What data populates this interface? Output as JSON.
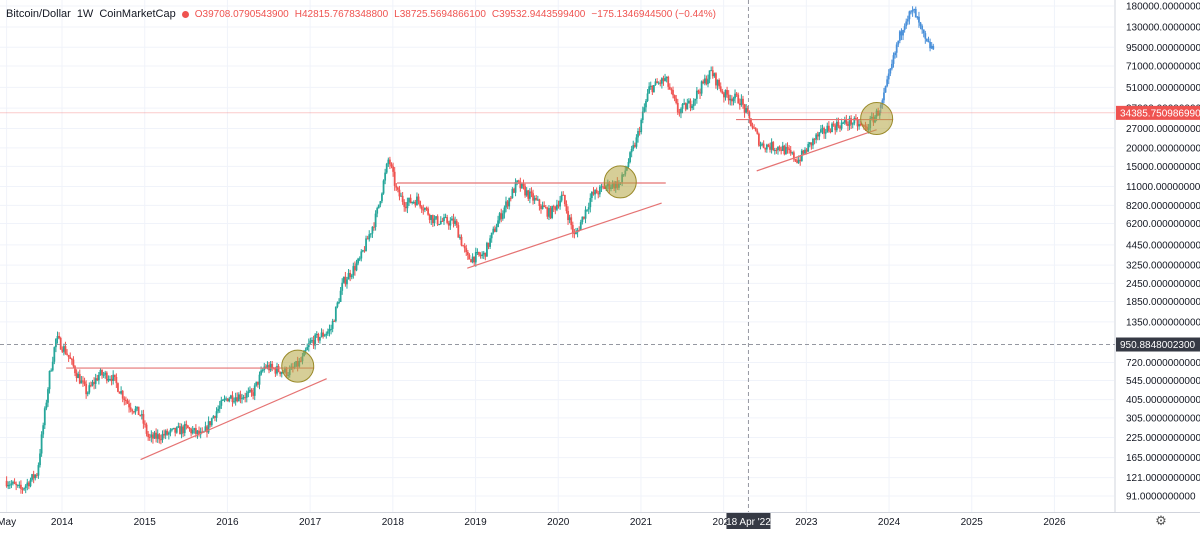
{
  "header": {
    "symbol": "Bitcoin/Dollar",
    "interval": "1W",
    "source": "CoinMarketCap",
    "open": "O39708.0790543900",
    "high": "H42815.7678348800",
    "low": "L38725.5694866100",
    "close": "C39532.9443599400",
    "change": "−175.1346944500 (−0.44%)"
  },
  "colors": {
    "up": "#26a69a",
    "down": "#ef5350",
    "projection": "#4a90d9",
    "trendline": "#e57373",
    "highlight": "#b5a642",
    "grid": "#f0f3fa",
    "crosshair": "#9598a1"
  },
  "icons": {
    "settings": "gear-icon"
  },
  "crosshair": {
    "x_label": "18 Apr '22",
    "y_label": "950.8848002300",
    "y_value": 950.88480023
  },
  "last_price": {
    "label": "34385.7509869900",
    "value": 34385.75
  },
  "chart_data": {
    "type": "candlestick",
    "scale": "log",
    "x_ticks": [
      {
        "label": "May",
        "t": 2013.33
      },
      {
        "label": "2014",
        "t": 2014.0
      },
      {
        "label": "2015",
        "t": 2015.0
      },
      {
        "label": "2016",
        "t": 2016.0
      },
      {
        "label": "2017",
        "t": 2017.0
      },
      {
        "label": "2018",
        "t": 2018.0
      },
      {
        "label": "2019",
        "t": 2019.0
      },
      {
        "label": "2020",
        "t": 2020.0
      },
      {
        "label": "2021",
        "t": 2021.0
      },
      {
        "label": "2022",
        "t": 2022.0
      },
      {
        "label": "2023",
        "t": 2023.0
      },
      {
        "label": "2024",
        "t": 2024.0
      },
      {
        "label": "2025",
        "t": 2025.0
      },
      {
        "label": "2026",
        "t": 2026.0
      }
    ],
    "y_ticks": [
      {
        "label": "180000.0000000000",
        "v": 180000
      },
      {
        "label": "130000.0000000000",
        "v": 130000
      },
      {
        "label": "95000.0000000000",
        "v": 95000
      },
      {
        "label": "71000.0000000000",
        "v": 71000
      },
      {
        "label": "51000.0000000000",
        "v": 51000
      },
      {
        "label": "37000.0000000000",
        "v": 37000
      },
      {
        "label": "27000.0000000000",
        "v": 27000
      },
      {
        "label": "20000.0000000000",
        "v": 20000
      },
      {
        "label": "15000.0000000000",
        "v": 15000
      },
      {
        "label": "11000.0000000000",
        "v": 11000
      },
      {
        "label": "8200.0000000000",
        "v": 8200
      },
      {
        "label": "6200.0000000000",
        "v": 6200
      },
      {
        "label": "4450.0000000000",
        "v": 4450
      },
      {
        "label": "3250.0000000000",
        "v": 3250
      },
      {
        "label": "2450.0000000000",
        "v": 2450
      },
      {
        "label": "1850.0000000000",
        "v": 1850
      },
      {
        "label": "1350.0000000000",
        "v": 1350
      },
      {
        "label": "720.0000000000",
        "v": 720
      },
      {
        "label": "545.0000000000",
        "v": 545
      },
      {
        "label": "405.0000000000",
        "v": 405
      },
      {
        "label": "305.0000000000",
        "v": 305
      },
      {
        "label": "225.0000000000",
        "v": 225
      },
      {
        "label": "165.0000000000",
        "v": 165
      },
      {
        "label": "121.0000000000",
        "v": 121
      },
      {
        "label": "91.0000000000",
        "v": 91
      }
    ],
    "price_path": [
      [
        2013.33,
        115
      ],
      [
        2013.5,
        100
      ],
      [
        2013.7,
        130
      ],
      [
        2013.85,
        600
      ],
      [
        2013.93,
        1050
      ],
      [
        2014.05,
        850
      ],
      [
        2014.15,
        650
      ],
      [
        2014.3,
        450
      ],
      [
        2014.45,
        600
      ],
      [
        2014.6,
        580
      ],
      [
        2014.8,
        380
      ],
      [
        2014.95,
        320
      ],
      [
        2015.05,
        220
      ],
      [
        2015.3,
        240
      ],
      [
        2015.5,
        260
      ],
      [
        2015.7,
        230
      ],
      [
        2015.85,
        330
      ],
      [
        2016.0,
        420
      ],
      [
        2016.3,
        440
      ],
      [
        2016.45,
        680
      ],
      [
        2016.55,
        650
      ],
      [
        2016.75,
        620
      ],
      [
        2016.9,
        740
      ],
      [
        2017.0,
        980
      ],
      [
        2017.25,
        1200
      ],
      [
        2017.4,
        2500
      ],
      [
        2017.6,
        3500
      ],
      [
        2017.8,
        7000
      ],
      [
        2017.95,
        17000
      ],
      [
        2018.05,
        10000
      ],
      [
        2018.15,
        8500
      ],
      [
        2018.3,
        9000
      ],
      [
        2018.5,
        6500
      ],
      [
        2018.75,
        6300
      ],
      [
        2018.9,
        3600
      ],
      [
        2019.1,
        3800
      ],
      [
        2019.3,
        7000
      ],
      [
        2019.5,
        11500
      ],
      [
        2019.75,
        8500
      ],
      [
        2019.9,
        7200
      ],
      [
        2020.05,
        9500
      ],
      [
        2020.2,
        5000
      ],
      [
        2020.4,
        9500
      ],
      [
        2020.6,
        11200
      ],
      [
        2020.75,
        11500
      ],
      [
        2020.95,
        23000
      ],
      [
        2021.1,
        50000
      ],
      [
        2021.3,
        58000
      ],
      [
        2021.45,
        35000
      ],
      [
        2021.6,
        40000
      ],
      [
        2021.85,
        65000
      ],
      [
        2022.0,
        46000
      ],
      [
        2022.2,
        42000
      ],
      [
        2022.45,
        21000
      ],
      [
        2022.7,
        20000
      ],
      [
        2022.9,
        16500
      ],
      [
        2023.1,
        23000
      ],
      [
        2023.3,
        28000
      ],
      [
        2023.55,
        30000
      ],
      [
        2023.72,
        27000
      ],
      [
        2023.9,
        37000
      ]
    ],
    "projection_path": [
      [
        2023.9,
        37000
      ],
      [
        2024.0,
        60000
      ],
      [
        2024.1,
        100000
      ],
      [
        2024.2,
        150000
      ],
      [
        2024.3,
        165000
      ],
      [
        2024.35,
        140000
      ],
      [
        2024.45,
        100000
      ],
      [
        2024.55,
        92000
      ]
    ],
    "resistance_lines": [
      {
        "t1": 2014.05,
        "t2": 2017.05,
        "v": 660
      },
      {
        "t1": 2018.05,
        "t2": 2021.3,
        "v": 11600
      },
      {
        "t1": 2022.15,
        "t2": 2024.05,
        "v": 31000
      }
    ],
    "support_lines": [
      {
        "t1": 2014.95,
        "t2": 2017.2,
        "v1": 160,
        "v2": 560
      },
      {
        "t1": 2018.9,
        "t2": 2021.25,
        "v1": 3100,
        "v2": 8500
      },
      {
        "t1": 2022.4,
        "t2": 2023.85,
        "v1": 14000,
        "v2": 26500
      }
    ],
    "highlight_circles": [
      {
        "t": 2016.85,
        "v": 680
      },
      {
        "t": 2020.75,
        "v": 11800
      },
      {
        "t": 2023.85,
        "v": 31500
      }
    ]
  }
}
